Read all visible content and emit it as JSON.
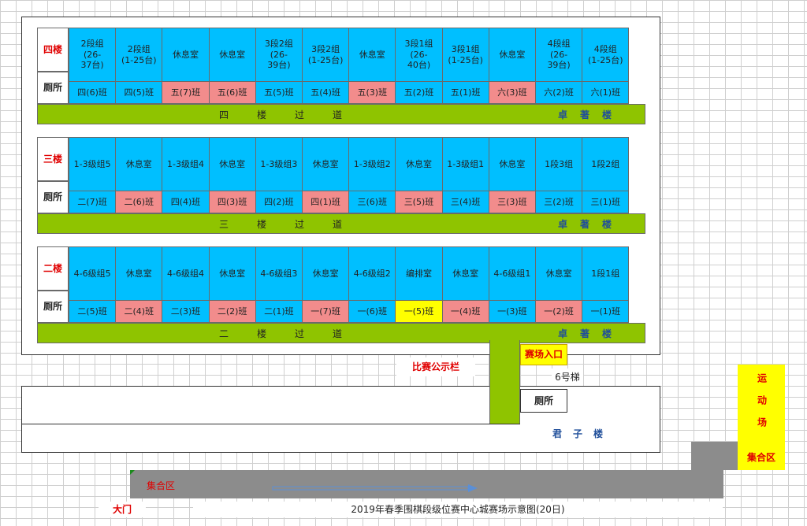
{
  "floors": {
    "four": {
      "label": "四楼",
      "toilet": "厕所",
      "corridor": "四楼过道",
      "building": "卓著楼",
      "rooms": [
        {
          "text": "2段组\n(26-\n37台)"
        },
        {
          "text": "2段组\n(1-25台)"
        },
        {
          "text": "休息室"
        },
        {
          "text": "休息室"
        },
        {
          "text": "3段2组\n(26-\n39台)"
        },
        {
          "text": "3段2组\n(1-25台)"
        },
        {
          "text": "休息室"
        },
        {
          "text": "3段1组\n(26-\n40台)"
        },
        {
          "text": "3段1组\n(1-25台)"
        },
        {
          "text": "休息室"
        },
        {
          "text": "4段组\n(26-\n39台)"
        },
        {
          "text": "4段组\n(1-25台)"
        }
      ],
      "classes": [
        {
          "text": "四(6)班",
          "color": "blue"
        },
        {
          "text": "四(5)班",
          "color": "blue"
        },
        {
          "text": "五(7)班",
          "color": "pink"
        },
        {
          "text": "五(6)班",
          "color": "pink"
        },
        {
          "text": "五(5)班",
          "color": "blue"
        },
        {
          "text": "五(4)班",
          "color": "blue"
        },
        {
          "text": "五(3)班",
          "color": "pink"
        },
        {
          "text": "五(2)班",
          "color": "blue"
        },
        {
          "text": "五(1)班",
          "color": "blue"
        },
        {
          "text": "六(3)班",
          "color": "pink"
        },
        {
          "text": "六(2)班",
          "color": "blue"
        },
        {
          "text": "六(1)班",
          "color": "blue"
        }
      ]
    },
    "three": {
      "label": "三楼",
      "toilet": "厕所",
      "corridor": "三楼过道",
      "building": "卓著楼",
      "rooms": [
        {
          "text": "1-3级组5"
        },
        {
          "text": "休息室"
        },
        {
          "text": "1-3级组4"
        },
        {
          "text": "休息室"
        },
        {
          "text": "1-3级组3"
        },
        {
          "text": "休息室"
        },
        {
          "text": "1-3级组2"
        },
        {
          "text": "休息室"
        },
        {
          "text": "1-3级组1"
        },
        {
          "text": "休息室"
        },
        {
          "text": "1段3组"
        },
        {
          "text": "1段2组"
        }
      ],
      "classes": [
        {
          "text": "二(7)班",
          "color": "blue"
        },
        {
          "text": "二(6)班",
          "color": "pink"
        },
        {
          "text": "四(4)班",
          "color": "blue"
        },
        {
          "text": "四(3)班",
          "color": "pink"
        },
        {
          "text": "四(2)班",
          "color": "blue"
        },
        {
          "text": "四(1)班",
          "color": "pink"
        },
        {
          "text": "三(6)班",
          "color": "blue"
        },
        {
          "text": "三(5)班",
          "color": "pink"
        },
        {
          "text": "三(4)班",
          "color": "blue"
        },
        {
          "text": "三(3)班",
          "color": "pink"
        },
        {
          "text": "三(2)班",
          "color": "blue"
        },
        {
          "text": "三(1)班",
          "color": "blue"
        }
      ]
    },
    "two": {
      "label": "二楼",
      "toilet": "厕所",
      "corridor": "二楼过道",
      "building": "卓著楼",
      "rooms": [
        {
          "text": "4-6级组5"
        },
        {
          "text": "休息室"
        },
        {
          "text": "4-6级组4"
        },
        {
          "text": "休息室"
        },
        {
          "text": "4-6级组3"
        },
        {
          "text": "休息室"
        },
        {
          "text": "4-6级组2"
        },
        {
          "text": "编排室"
        },
        {
          "text": "休息室"
        },
        {
          "text": "4-6级组1"
        },
        {
          "text": "休息室"
        },
        {
          "text": "1段1组"
        }
      ],
      "classes": [
        {
          "text": "二(5)班",
          "color": "blue"
        },
        {
          "text": "二(4)班",
          "color": "pink"
        },
        {
          "text": "二(3)班",
          "color": "blue"
        },
        {
          "text": "二(2)班",
          "color": "pink"
        },
        {
          "text": "二(1)班",
          "color": "blue"
        },
        {
          "text": "一(7)班",
          "color": "pink"
        },
        {
          "text": "一(6)班",
          "color": "blue"
        },
        {
          "text": "一(5)班",
          "color": "yellow"
        },
        {
          "text": "一(4)班",
          "color": "pink"
        },
        {
          "text": "一(3)班",
          "color": "blue"
        },
        {
          "text": "一(2)班",
          "color": "pink"
        },
        {
          "text": "一(1)班",
          "color": "blue"
        }
      ]
    }
  },
  "site": {
    "entrance": "赛场入口",
    "elevator": "6号梯",
    "toilet": "厕所",
    "notice_board": "比赛公示栏",
    "junzi_building": "君子楼",
    "playground": "运动场",
    "assembly_right": "集合区",
    "assembly_left": "集合区",
    "gate": "大门",
    "caption": "2019年春季围棋段级位赛中心城赛场示意图(20日)"
  },
  "colors": {
    "room": "#00bfff",
    "pink": "#f28c8c",
    "yellow": "#ffff00",
    "corridor": "#8fc400",
    "road": "#8c8c8c",
    "arrow": "#5b8fd6"
  }
}
